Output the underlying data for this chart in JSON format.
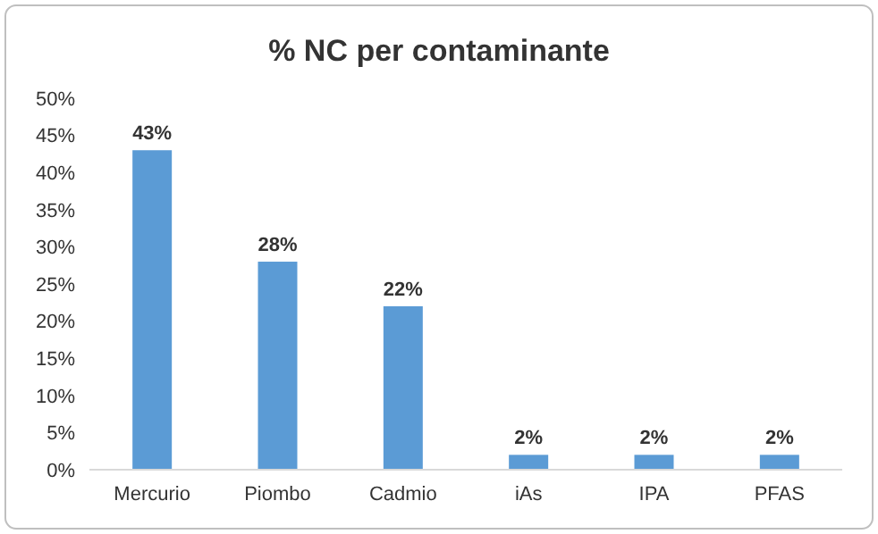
{
  "chart_data": {
    "type": "bar",
    "title": "% NC per contaminante",
    "categories": [
      "Mercurio",
      "Piombo",
      "Cadmio",
      "iAs",
      "IPA",
      "PFAS"
    ],
    "values": [
      43,
      28,
      22,
      2,
      2,
      2
    ],
    "value_labels": [
      "43%",
      "28%",
      "22%",
      "2%",
      "2%",
      "2%"
    ],
    "color": "#5b9bd5",
    "ylim": [
      0,
      50
    ],
    "yticks": [
      {
        "value": 0,
        "label": "0%"
      },
      {
        "value": 5,
        "label": "5%"
      },
      {
        "value": 10,
        "label": "10%"
      },
      {
        "value": 15,
        "label": "15%"
      },
      {
        "value": 20,
        "label": "20%"
      },
      {
        "value": 25,
        "label": "25%"
      },
      {
        "value": 30,
        "label": "30%"
      },
      {
        "value": 35,
        "label": "35%"
      },
      {
        "value": 40,
        "label": "40%"
      },
      {
        "value": 45,
        "label": "45%"
      },
      {
        "value": 50,
        "label": "50%"
      }
    ],
    "grid": false
  }
}
